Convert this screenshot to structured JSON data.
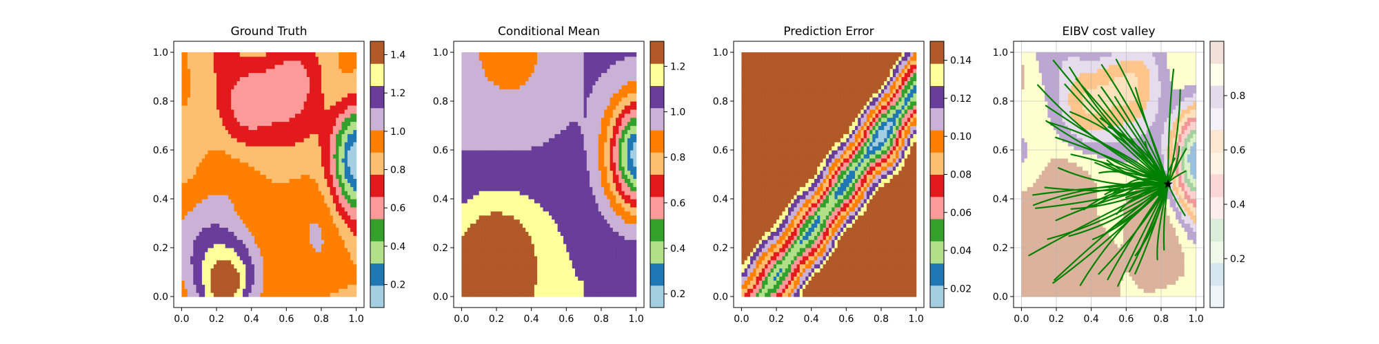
{
  "chart_data": [
    {
      "type": "heatmap",
      "title": "Ground Truth",
      "xlim": [
        0,
        1
      ],
      "ylim": [
        0,
        1
      ],
      "xticks": [
        "0.0",
        "0.2",
        "0.4",
        "0.6",
        "0.8",
        "1.0"
      ],
      "yticks": [
        "0.0",
        "0.2",
        "0.4",
        "0.6",
        "0.8",
        "1.0"
      ],
      "colormap": "Paired",
      "colorbar": {
        "range": [
          0.08,
          1.47
        ],
        "ticks": [
          "0.2",
          "0.4",
          "0.6",
          "0.8",
          "1.0",
          "1.2",
          "1.4"
        ],
        "tick_values": [
          0.2,
          0.4,
          0.6,
          0.8,
          1.0,
          1.2,
          1.4
        ]
      }
    },
    {
      "type": "heatmap",
      "title": "Conditional Mean",
      "xlim": [
        0,
        1
      ],
      "ylim": [
        0,
        1
      ],
      "xticks": [
        "0.0",
        "0.2",
        "0.4",
        "0.6",
        "0.8",
        "1.0"
      ],
      "yticks": [
        "0.0",
        "0.2",
        "0.4",
        "0.6",
        "0.8",
        "1.0"
      ],
      "colormap": "Paired",
      "colorbar": {
        "range": [
          0.14,
          1.31
        ],
        "ticks": [
          "0.2",
          "0.4",
          "0.6",
          "0.8",
          "1.0",
          "1.2"
        ],
        "tick_values": [
          0.2,
          0.4,
          0.6,
          0.8,
          1.0,
          1.2
        ]
      }
    },
    {
      "type": "heatmap",
      "title": "Prediction Error",
      "xlim": [
        0,
        1
      ],
      "ylim": [
        0,
        1
      ],
      "xticks": [
        "0.0",
        "0.2",
        "0.4",
        "0.6",
        "0.8",
        "1.0"
      ],
      "yticks": [
        "0.0",
        "0.2",
        "0.4",
        "0.6",
        "0.8",
        "1.0"
      ],
      "colormap": "Paired",
      "colorbar": {
        "range": [
          0.01,
          0.15
        ],
        "ticks": [
          "0.02",
          "0.04",
          "0.06",
          "0.08",
          "0.10",
          "0.12",
          "0.14"
        ],
        "tick_values": [
          0.02,
          0.04,
          0.06,
          0.08,
          0.1,
          0.12,
          0.14
        ]
      }
    },
    {
      "type": "heatmap",
      "title": "EIBV cost valley",
      "xlim": [
        0,
        1
      ],
      "ylim": [
        0,
        1
      ],
      "xticks": [
        "0.0",
        "0.2",
        "0.4",
        "0.6",
        "0.8",
        "1.0"
      ],
      "yticks": [
        "0.0",
        "0.2",
        "0.4",
        "0.6",
        "0.8",
        "1.0"
      ],
      "colormap": "Paired (faded)",
      "colorbar": {
        "range": [
          0.02,
          1.0
        ],
        "ticks": [
          "0.2",
          "0.4",
          "0.6",
          "0.8"
        ],
        "tick_values": [
          0.2,
          0.4,
          0.6,
          0.8
        ]
      },
      "overlay": {
        "type": "tree-paths",
        "color": "#008000",
        "root": [
          0.84,
          0.46
        ],
        "marker": "star",
        "marker_color": "#000000"
      }
    }
  ],
  "palette": [
    "#a6cee3",
    "#1f78b4",
    "#b2df8a",
    "#33a02c",
    "#fb9a99",
    "#e31a1c",
    "#fdbf6f",
    "#ff7f00",
    "#cab2d6",
    "#6a3d9a",
    "#ffff99",
    "#b15928"
  ]
}
